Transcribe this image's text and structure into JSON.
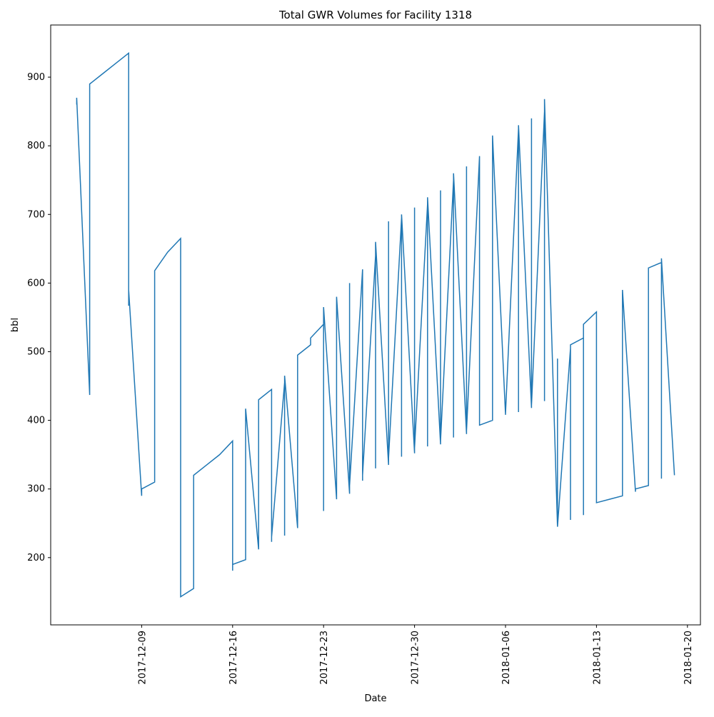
{
  "chart_data": {
    "type": "line",
    "title": "Total GWR Volumes for Facility 1318",
    "x_label": "Date",
    "y_label": "bbl",
    "x": [
      "2017-12-04",
      "2017-12-04",
      "2017-12-05",
      "2017-12-05",
      "2017-12-05",
      "2017-12-06",
      "2017-12-07",
      "2017-12-08",
      "2017-12-08",
      "2017-12-08",
      "2017-12-09",
      "2017-12-09",
      "2017-12-10",
      "2017-12-10",
      "2017-12-11",
      "2017-12-12",
      "2017-12-12",
      "2017-12-13",
      "2017-12-13",
      "2017-12-13",
      "2017-12-14",
      "2017-12-15",
      "2017-12-16",
      "2017-12-16",
      "2017-12-16",
      "2017-12-17",
      "2017-12-17",
      "2017-12-17",
      "2017-12-18",
      "2017-12-18",
      "2017-12-19",
      "2017-12-19",
      "2017-12-19",
      "2017-12-20",
      "2017-12-20",
      "2017-12-20",
      "2017-12-21",
      "2017-12-21",
      "2017-12-21",
      "2017-12-22",
      "2017-12-22",
      "2017-12-23",
      "2017-12-23",
      "2017-12-23",
      "2017-12-23",
      "2017-12-24",
      "2017-12-24",
      "2017-12-25",
      "2017-12-25",
      "2017-12-25",
      "2017-12-26",
      "2017-12-26",
      "2017-12-26",
      "2017-12-27",
      "2017-12-27",
      "2017-12-27",
      "2017-12-28",
      "2017-12-28",
      "2017-12-28",
      "2017-12-29",
      "2017-12-29",
      "2017-12-29",
      "2017-12-30",
      "2017-12-30",
      "2017-12-30",
      "2017-12-31",
      "2017-12-31",
      "2017-12-31",
      "2018-01-01",
      "2018-01-01",
      "2018-01-01",
      "2018-01-02",
      "2018-01-02",
      "2018-01-02",
      "2018-01-03",
      "2018-01-03",
      "2018-01-03",
      "2018-01-04",
      "2018-01-04",
      "2018-01-05",
      "2018-01-05",
      "2018-01-05",
      "2018-01-06",
      "2018-01-06",
      "2018-01-07",
      "2018-01-07",
      "2018-01-07",
      "2018-01-08",
      "2018-01-08",
      "2018-01-08",
      "2018-01-09",
      "2018-01-09",
      "2018-01-09",
      "2018-01-10",
      "2018-01-10",
      "2018-01-10",
      "2018-01-11",
      "2018-01-11",
      "2018-01-11",
      "2018-01-12",
      "2018-01-12",
      "2018-01-12",
      "2018-01-13",
      "2018-01-13",
      "2018-01-14",
      "2018-01-15",
      "2018-01-15",
      "2018-01-15",
      "2018-01-15",
      "2018-01-16",
      "2018-01-16",
      "2018-01-17",
      "2018-01-17",
      "2018-01-17",
      "2018-01-17",
      "2018-01-18",
      "2018-01-18",
      "2018-01-18",
      "2018-01-19"
    ],
    "series": [
      {
        "name": "bbl",
        "color": "#1f77b4",
        "values": [
          860,
          870,
          437,
          443,
          890,
          905,
          920,
          935,
          567,
          590,
          290,
          300,
          310,
          618,
          645,
          665,
          143,
          155,
          310,
          320,
          335,
          350,
          370,
          181,
          190,
          197,
          400,
          417,
          212,
          430,
          445,
          223,
          230,
          455,
          232,
          465,
          243,
          485,
          495,
          510,
          520,
          540,
          268,
          280,
          565,
          285,
          580,
          293,
          600,
          305,
          620,
          312,
          320,
          640,
          330,
          660,
          335,
          690,
          345,
          695,
          347,
          700,
          352,
          710,
          360,
          715,
          362,
          725,
          365,
          735,
          370,
          750,
          375,
          760,
          380,
          770,
          385,
          785,
          393,
          400,
          805,
          815,
          408,
          410,
          825,
          412,
          830,
          418,
          840,
          422,
          850,
          428,
          868,
          245,
          490,
          245,
          505,
          255,
          510,
          520,
          262,
          540,
          558,
          280,
          285,
          290,
          580,
          292,
          590,
          296,
          300,
          305,
          618,
          310,
          622,
          630,
          315,
          636,
          320
        ]
      }
    ],
    "xlim": [
      "2017-12-02",
      "2018-01-21"
    ],
    "xticks": [
      "2017-12-09",
      "2017-12-16",
      "2017-12-23",
      "2017-12-30",
      "2018-01-06",
      "2018-01-13",
      "2018-01-20"
    ],
    "ylim": [
      102,
      976
    ],
    "yticks": [
      200,
      300,
      400,
      500,
      600,
      700,
      800,
      900
    ],
    "grid": false
  }
}
